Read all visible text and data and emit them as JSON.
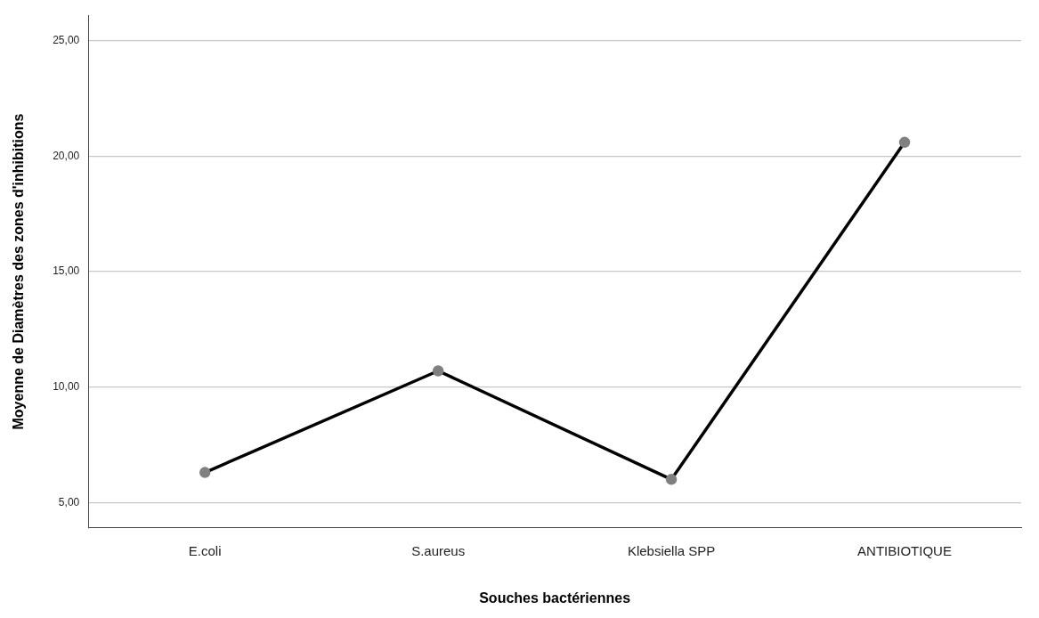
{
  "chart_data": {
    "type": "line",
    "xlabel": "Souches bactériennes",
    "ylabel": "Moyenne de Diamètres des zones d'inhibitions",
    "categories": [
      "E.coli",
      "S.aureus",
      "Klebsiella SPP",
      "ANTIBIOTIQUE"
    ],
    "series": [
      {
        "color": "#000000",
        "values": [
          6.3,
          10.7,
          6.0,
          20.6
        ]
      }
    ],
    "ylim": [
      3.9,
      26.1
    ],
    "yticks": [
      {
        "value": 5,
        "label": "5,00"
      },
      {
        "value": 10,
        "label": "10,00"
      },
      {
        "value": 15,
        "label": "15,00"
      },
      {
        "value": 20,
        "label": "20,00"
      },
      {
        "value": 25,
        "label": "25,00"
      }
    ],
    "grid": "y",
    "legend": false,
    "marker": "circle",
    "line_style": "solid"
  }
}
